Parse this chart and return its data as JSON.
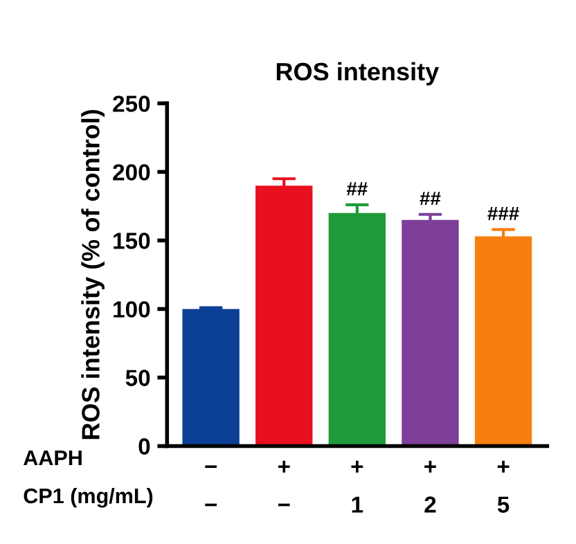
{
  "chart_data": {
    "type": "bar",
    "title": "ROS intensity",
    "ylabel": "ROS intensity (% of control)",
    "categories": [
      "−\n−",
      "+\n−",
      "+\n1",
      "+\n2",
      "+\n5"
    ],
    "values": [
      100,
      190,
      170,
      165,
      153
    ],
    "colors": [
      "#0b3f94",
      "#e8101f",
      "#1f9a3b",
      "#7d3f98",
      "#f77f10"
    ],
    "errors": [
      1,
      5,
      6,
      4,
      5
    ],
    "value_labels": [
      null,
      null,
      "##",
      "##",
      "###"
    ],
    "annotations": [
      "AAPH",
      "CP1 (mg/mL)"
    ],
    "ylim": [
      0,
      250
    ],
    "yticks": [
      0,
      50,
      100,
      150,
      200,
      250
    ],
    "grid": false,
    "legend": false
  }
}
